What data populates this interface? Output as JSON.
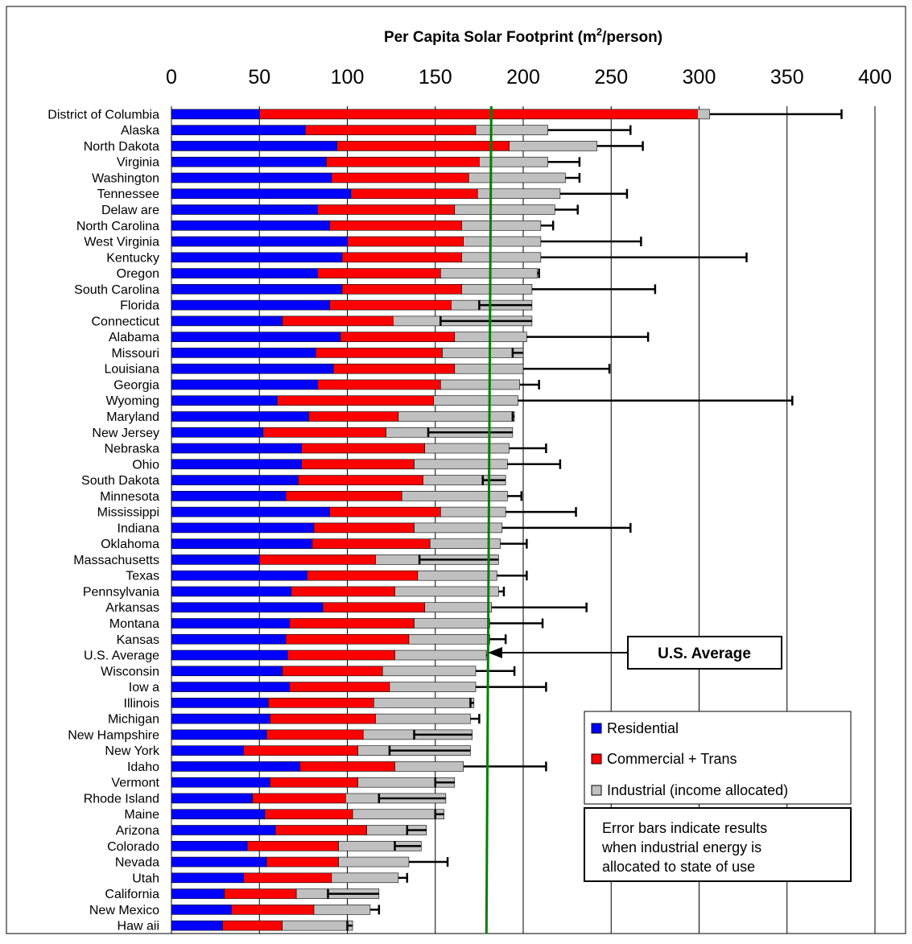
{
  "colors": {
    "residential": "#0000ff",
    "commercial": "#ff0000",
    "industrial": "#c0c0c0",
    "avg_line": "#008000",
    "grid": "#000000",
    "error": "#000000"
  },
  "chart_data": {
    "type": "bar",
    "orientation": "horizontal",
    "stacked": true,
    "title": "Per Capita Solar Footprint (m²/person)",
    "title_main": "Per Capita Solar Footprint (m",
    "title_sup": "2",
    "title_end": "/person)",
    "xlim": [
      0,
      400
    ],
    "x_ticks": [
      0,
      50,
      100,
      150,
      200,
      250,
      300,
      350,
      400
    ],
    "x_tick_labels": [
      "0",
      "50",
      "100",
      "150",
      "200",
      "250",
      "300",
      "350",
      "400"
    ],
    "grid": "vertical",
    "legend_position": "bottom-right",
    "legend": [
      "Residential",
      "Commercial + Trans",
      "Industrial (income allocated)"
    ],
    "note_lines": [
      "Error bars indicate results",
      "when industrial energy is",
      "allocated to state of use"
    ],
    "average_line_value": 180,
    "average_label": "U.S. Average",
    "categories": [
      "District of Columbia",
      "Alaska",
      "North Dakota",
      "Virginia",
      "Washington",
      "Tennessee",
      "Delaw are",
      "North Carolina",
      "West Virginia",
      "Kentucky",
      "Oregon",
      "South Carolina",
      "Florida",
      "Connecticut",
      "Alabama",
      "Missouri",
      "Louisiana",
      "Georgia",
      "Wyoming",
      "Maryland",
      "New Jersey",
      "Nebraska",
      "Ohio",
      "South Dakota",
      "Minnesota",
      "Mississippi",
      "Indiana",
      "Oklahoma",
      "Massachusetts",
      "Texas",
      "Pennsylvania",
      "Arkansas",
      "Montana",
      "Kansas",
      "U.S. Average",
      "Wisconsin",
      "Iow a",
      "Illinois",
      "Michigan",
      "New Hampshire",
      "New York",
      "Idaho",
      "Vermont",
      "Rhode Island",
      "Maine",
      "Arizona",
      "Colorado",
      "Nevada",
      "Utah",
      "California",
      "New Mexico",
      "Haw aii"
    ],
    "series": [
      {
        "name": "Residential",
        "values": [
          50,
          76,
          94,
          88,
          91,
          102,
          83,
          90,
          100,
          97,
          83,
          97,
          90,
          63,
          96,
          82,
          92,
          83,
          60,
          78,
          52,
          74,
          74,
          72,
          65,
          90,
          81,
          80,
          50,
          77,
          68,
          86,
          67,
          65,
          66,
          63,
          67,
          55,
          56,
          54,
          41,
          73,
          56,
          46,
          53,
          59,
          43,
          54,
          41,
          30,
          34,
          29
        ]
      },
      {
        "name": "Commercial + Trans",
        "values": [
          249,
          97,
          98,
          87,
          78,
          72,
          78,
          75,
          66,
          68,
          70,
          68,
          69,
          63,
          65,
          72,
          69,
          70,
          89,
          51,
          70,
          70,
          64,
          71,
          66,
          63,
          57,
          67,
          66,
          63,
          59,
          58,
          71,
          70,
          61,
          57,
          57,
          60,
          60,
          55,
          65,
          54,
          50,
          53,
          50,
          52,
          52,
          41,
          50,
          41,
          47,
          34
        ]
      },
      {
        "name": "Industrial (income allocated)",
        "values": [
          7,
          41,
          50,
          39,
          55,
          47,
          57,
          45,
          44,
          45,
          55,
          40,
          46,
          79,
          41,
          46,
          39,
          45,
          48,
          66,
          72,
          48,
          53,
          47,
          60,
          37,
          50,
          40,
          70,
          45,
          59,
          38,
          43,
          46,
          52,
          53,
          49,
          57,
          54,
          62,
          64,
          39,
          55,
          57,
          52,
          34,
          47,
          40,
          38,
          47,
          32,
          40
        ]
      }
    ],
    "error_bar_values": [
      381,
      261,
      268,
      232,
      232,
      259,
      231,
      217,
      267,
      327,
      209,
      275,
      175,
      153,
      271,
      194,
      249,
      209,
      353,
      194,
      146,
      213,
      221,
      177,
      199,
      230,
      261,
      202,
      141,
      202,
      189,
      236,
      211,
      190,
      180,
      195,
      213,
      170,
      175,
      138,
      124,
      213,
      150,
      118,
      150,
      134,
      127,
      157,
      134,
      89,
      118,
      100
    ]
  }
}
